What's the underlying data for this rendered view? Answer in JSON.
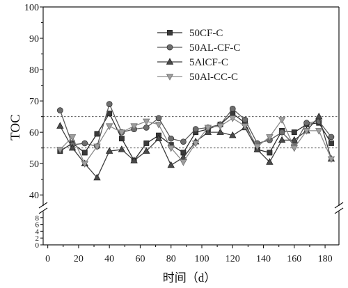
{
  "chart_data": {
    "type": "line",
    "xlabel": "时间（d）",
    "ylabel": "TOC",
    "xlim": [
      -3,
      189
    ],
    "x_ticks": [
      0,
      20,
      40,
      60,
      80,
      100,
      120,
      140,
      160,
      180
    ],
    "y_axis": {
      "broken": true,
      "upper": {
        "range": [
          36.5,
          100
        ],
        "ticks": [
          40,
          50,
          60,
          70,
          80,
          90,
          100
        ]
      },
      "lower": {
        "range": [
          0,
          9.8
        ],
        "ticks": [
          0,
          2,
          4,
          6,
          8
        ]
      }
    },
    "reference_lines": [
      55,
      65
    ],
    "reference_line_color": "#555555",
    "grid": false,
    "legend_position": "top-center",
    "x": [
      8,
      16,
      24,
      32,
      40,
      48,
      56,
      64,
      72,
      80,
      88,
      96,
      104,
      112,
      120,
      128,
      136,
      144,
      152,
      160,
      168,
      176,
      184
    ],
    "series": [
      {
        "name": "50CF-C",
        "marker": "square",
        "line_color": "#2e2e2e",
        "marker_color": "#3a3a3a",
        "edge_color": "#1a1a1a",
        "values": [
          54,
          56.5,
          53.5,
          59.5,
          66,
          58,
          51,
          56.5,
          59,
          56,
          53.5,
          60,
          61,
          62.5,
          66,
          63,
          54.5,
          53.5,
          60.5,
          60,
          62.5,
          63,
          56.5
        ]
      },
      {
        "name": "50AL-CF-C",
        "marker": "circle",
        "line_color": "#5a5a5a",
        "marker_color": "#6e6e6e",
        "edge_color": "#2a2a2a",
        "values": [
          67,
          56,
          56.5,
          55.5,
          69,
          60,
          61,
          61.5,
          64.5,
          58,
          57,
          61,
          61.5,
          62.5,
          67.5,
          64,
          56.5,
          57.5,
          60,
          56,
          63,
          63.5,
          58.5
        ]
      },
      {
        "name": "5AlCF-C",
        "marker": "triangle-up",
        "line_color": "#404040",
        "marker_color": "#4a4a4a",
        "edge_color": "#1e1e1e",
        "values": [
          62,
          55,
          50,
          45.5,
          54,
          54.5,
          51,
          54,
          58,
          49.5,
          52,
          57,
          60,
          60,
          59,
          61.5,
          54.5,
          50.5,
          57.5,
          57.5,
          60.5,
          65,
          51.5
        ]
      },
      {
        "name": "50Al-CC-C",
        "marker": "triangle-down",
        "line_color": "#8c8c8c",
        "marker_color": "#9e9e9e",
        "edge_color": "#6a6a6a",
        "values": [
          54.5,
          58.5,
          50,
          55.5,
          62,
          60,
          62,
          63.5,
          62.5,
          55,
          50.5,
          56.5,
          61.5,
          62,
          64.5,
          62,
          55.5,
          58.5,
          64,
          55,
          60.5,
          60.5,
          51.5
        ]
      }
    ]
  }
}
